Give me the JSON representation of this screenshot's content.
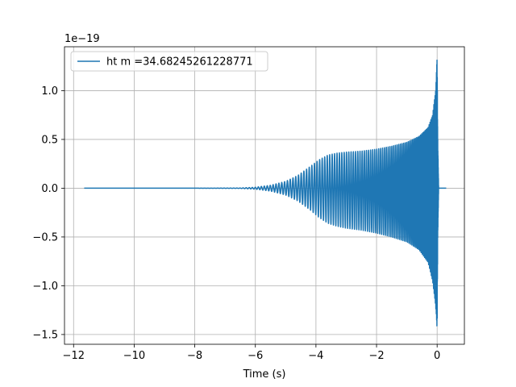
{
  "chart_data": {
    "type": "line",
    "title": "",
    "xlabel": "Time (s)",
    "ylabel": "",
    "y_offset_label": "1e−19",
    "xlim": [
      -12.3,
      0.9
    ],
    "ylim": [
      -1.6,
      1.45
    ],
    "x_ticks": [
      -12,
      -10,
      -8,
      -6,
      -4,
      -2,
      0
    ],
    "x_tick_labels": [
      "−12",
      "−10",
      "−8",
      "−6",
      "−4",
      "−2",
      "0"
    ],
    "y_ticks": [
      -1.5,
      -1.0,
      -0.5,
      0.0,
      0.5,
      1.0
    ],
    "y_tick_labels": [
      "−1.5",
      "−1.0",
      "−0.5",
      "0.0",
      "0.5",
      "1.0"
    ],
    "grid": true,
    "legend_position": "top-left",
    "series": [
      {
        "name": "ht m =34.68245261228771",
        "color": "#1f77b4",
        "x_range": [
          -11.65,
          0.3
        ],
        "envelope": {
          "t": [
            -11.65,
            -8.0,
            -6.5,
            -6.0,
            -5.5,
            -5.0,
            -4.6,
            -4.2,
            -3.9,
            -3.6,
            -3.3,
            -3.0,
            -2.5,
            -2.0,
            -1.5,
            -1.0,
            -0.6,
            -0.3,
            -0.15,
            -0.05,
            0.0,
            0.02,
            0.05,
            0.3
          ],
          "upper": [
            0.0,
            0.0,
            0.002,
            0.01,
            0.03,
            0.07,
            0.13,
            0.22,
            0.29,
            0.34,
            0.36,
            0.37,
            0.38,
            0.4,
            0.43,
            0.47,
            0.53,
            0.62,
            0.75,
            1.0,
            1.35,
            0.5,
            0.0,
            0.0
          ],
          "lower": [
            0.0,
            0.0,
            -0.002,
            -0.01,
            -0.03,
            -0.07,
            -0.13,
            -0.22,
            -0.3,
            -0.36,
            -0.39,
            -0.41,
            -0.43,
            -0.46,
            -0.5,
            -0.55,
            -0.63,
            -0.76,
            -0.95,
            -1.2,
            -1.45,
            -0.5,
            0.0,
            0.0
          ]
        }
      }
    ]
  }
}
